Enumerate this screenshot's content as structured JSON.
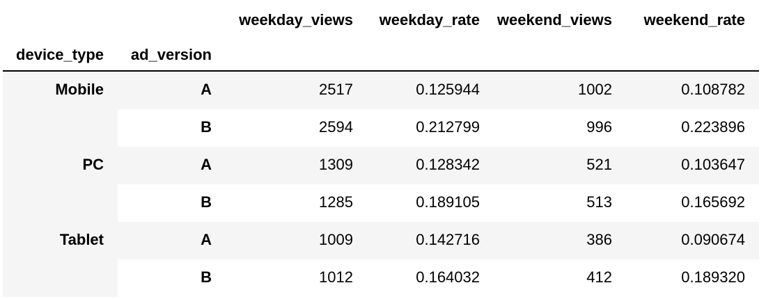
{
  "colors": {
    "stripe": "#f5f5f5",
    "border": "#000000",
    "text": "#000000",
    "bg": "#ffffff"
  },
  "chart_data": {
    "type": "table",
    "title": "",
    "index_names": [
      "device_type",
      "ad_version"
    ],
    "columns": [
      "weekday_views",
      "weekday_rate",
      "weekend_views",
      "weekend_rate"
    ],
    "groups": [
      {
        "device_type": "Mobile",
        "rows": [
          {
            "ad_version": "A",
            "values": [
              "2517",
              "0.125944",
              "1002",
              "0.108782"
            ]
          },
          {
            "ad_version": "B",
            "values": [
              "2594",
              "0.212799",
              "996",
              "0.223896"
            ]
          }
        ]
      },
      {
        "device_type": "PC",
        "rows": [
          {
            "ad_version": "A",
            "values": [
              "1309",
              "0.128342",
              "521",
              "0.103647"
            ]
          },
          {
            "ad_version": "B",
            "values": [
              "1285",
              "0.189105",
              "513",
              "0.165692"
            ]
          }
        ]
      },
      {
        "device_type": "Tablet",
        "rows": [
          {
            "ad_version": "A",
            "values": [
              "1009",
              "0.142716",
              "386",
              "0.090674"
            ]
          },
          {
            "ad_version": "B",
            "values": [
              "1012",
              "0.164032",
              "412",
              "0.189320"
            ]
          }
        ]
      }
    ]
  }
}
